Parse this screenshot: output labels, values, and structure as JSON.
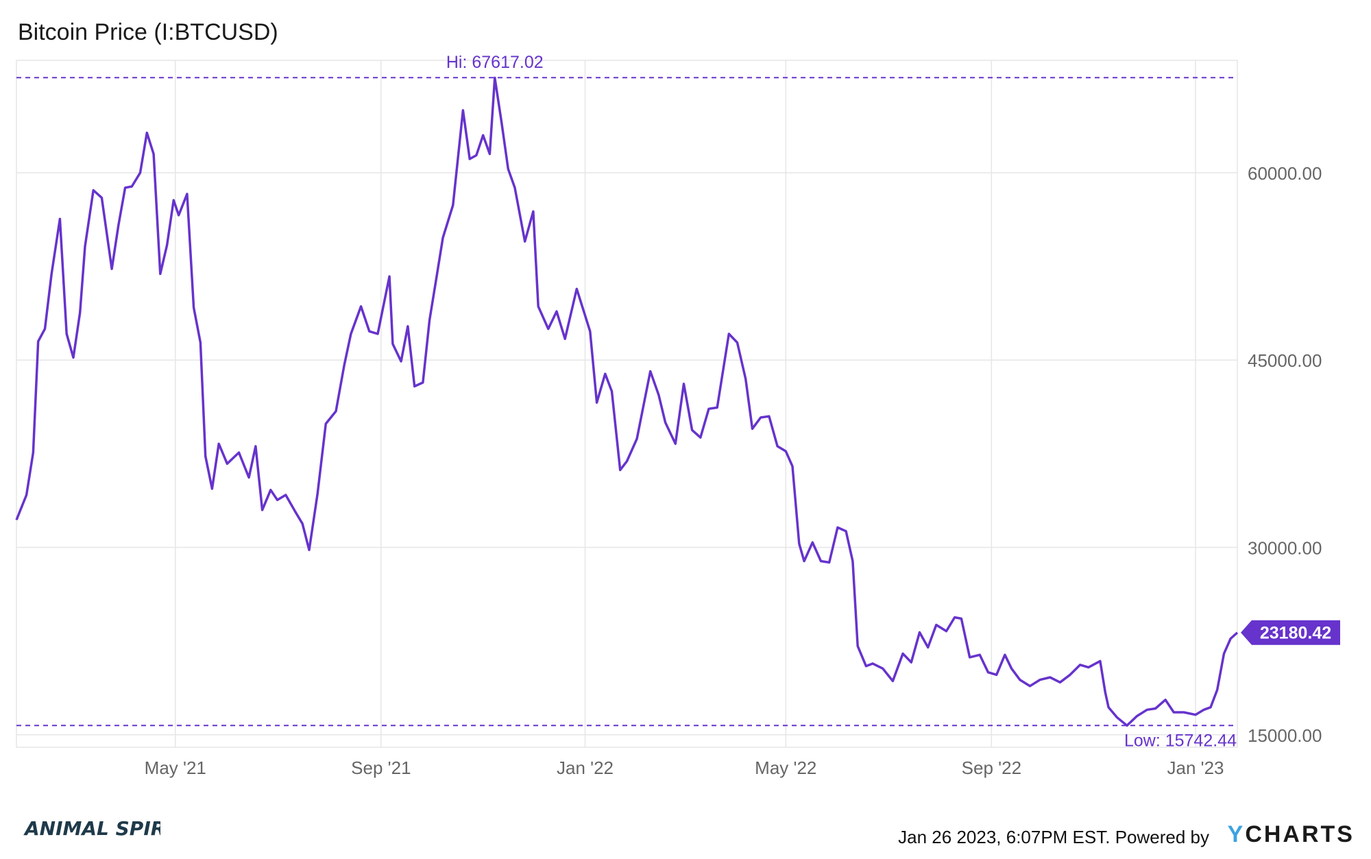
{
  "title": "Bitcoin Price (I:BTCUSD)",
  "footer": {
    "timestamp": "Jan 26 2023, 6:07PM EST. Powered by",
    "brand_y": "Y",
    "brand_rest": "CHARTS",
    "logo_text": "ANIMAL SPIRITS"
  },
  "colors": {
    "line": "#6633cc",
    "grid": "#e6e6e6",
    "axis_text": "#666666",
    "label_bg": "#6633cc"
  },
  "chart_data": {
    "type": "line",
    "title": "Bitcoin Price (I:BTCUSD)",
    "ylim": [
      14000,
      69000
    ],
    "y_ticks": [
      15000,
      30000,
      45000,
      60000
    ],
    "y_tick_labels": [
      "15000.00",
      "30000.00",
      "45000.00",
      "60000.00"
    ],
    "x_tick_labels": [
      "May '21",
      "Sep '21",
      "Jan '22",
      "May '22",
      "Sep '22",
      "Jan '23"
    ],
    "x_tick_dates": [
      "2021-05-01",
      "2021-09-01",
      "2022-01-01",
      "2022-05-01",
      "2022-09-01",
      "2023-01-01"
    ],
    "x_range": [
      "2021-01-26",
      "2023-01-26"
    ],
    "grid": true,
    "hi": {
      "value": 67617.02,
      "label": "Hi: 67617.02",
      "date": "2021-11-08"
    },
    "low": {
      "value": 15742.44,
      "label": "Low: 15742.44",
      "date": "2022-11-21"
    },
    "last": {
      "value": 23180.42,
      "label": "23180.42"
    },
    "series": [
      {
        "dates": [
          "2021-01-26",
          "2021-02-01",
          "2021-02-05",
          "2021-02-08",
          "2021-02-12",
          "2021-02-16",
          "2021-02-21",
          "2021-02-25",
          "2021-03-01",
          "2021-03-05",
          "2021-03-08",
          "2021-03-13",
          "2021-03-18",
          "2021-03-24",
          "2021-03-28",
          "2021-04-01",
          "2021-04-05",
          "2021-04-10",
          "2021-04-14",
          "2021-04-18",
          "2021-04-22",
          "2021-04-26",
          "2021-04-30",
          "2021-05-03",
          "2021-05-08",
          "2021-05-12",
          "2021-05-16",
          "2021-05-19",
          "2021-05-23",
          "2021-05-27",
          "2021-06-01",
          "2021-06-08",
          "2021-06-14",
          "2021-06-18",
          "2021-06-22",
          "2021-06-27",
          "2021-07-01",
          "2021-07-06",
          "2021-07-12",
          "2021-07-16",
          "2021-07-20",
          "2021-07-25",
          "2021-07-30",
          "2021-08-05",
          "2021-08-10",
          "2021-08-14",
          "2021-08-20",
          "2021-08-25",
          "2021-08-30",
          "2021-09-06",
          "2021-09-08",
          "2021-09-13",
          "2021-09-17",
          "2021-09-21",
          "2021-09-26",
          "2021-09-30",
          "2021-10-04",
          "2021-10-08",
          "2021-10-14",
          "2021-10-20",
          "2021-10-24",
          "2021-10-28",
          "2021-11-01",
          "2021-11-05",
          "2021-11-08",
          "2021-11-12",
          "2021-11-16",
          "2021-11-20",
          "2021-11-26",
          "2021-12-01",
          "2021-12-04",
          "2021-12-10",
          "2021-12-15",
          "2021-12-20",
          "2021-12-27",
          "2022-01-04",
          "2022-01-08",
          "2022-01-13",
          "2022-01-17",
          "2022-01-22",
          "2022-01-26",
          "2022-02-01",
          "2022-02-05",
          "2022-02-09",
          "2022-02-14",
          "2022-02-18",
          "2022-02-24",
          "2022-03-01",
          "2022-03-06",
          "2022-03-11",
          "2022-03-16",
          "2022-03-21",
          "2022-03-28",
          "2022-04-02",
          "2022-04-07",
          "2022-04-11",
          "2022-04-16",
          "2022-04-21",
          "2022-04-26",
          "2022-05-01",
          "2022-05-05",
          "2022-05-09",
          "2022-05-12",
          "2022-05-17",
          "2022-05-22",
          "2022-05-27",
          "2022-06-01",
          "2022-06-06",
          "2022-06-10",
          "2022-06-13",
          "2022-06-18",
          "2022-06-22",
          "2022-06-28",
          "2022-07-04",
          "2022-07-10",
          "2022-07-15",
          "2022-07-20",
          "2022-07-25",
          "2022-07-30",
          "2022-08-05",
          "2022-08-10",
          "2022-08-14",
          "2022-08-19",
          "2022-08-25",
          "2022-08-30",
          "2022-09-04",
          "2022-09-09",
          "2022-09-13",
          "2022-09-18",
          "2022-09-24",
          "2022-09-30",
          "2022-10-06",
          "2022-10-12",
          "2022-10-18",
          "2022-10-24",
          "2022-10-29",
          "2022-11-05",
          "2022-11-08",
          "2022-11-10",
          "2022-11-15",
          "2022-11-21",
          "2022-11-27",
          "2022-12-03",
          "2022-12-08",
          "2022-12-14",
          "2022-12-19",
          "2022-12-25",
          "2023-01-01",
          "2023-01-06",
          "2023-01-10",
          "2023-01-14",
          "2023-01-18",
          "2023-01-22",
          "2023-01-26"
        ],
        "values": [
          32200,
          34200,
          37600,
          46500,
          47500,
          51900,
          56300,
          47100,
          45200,
          48800,
          54100,
          58600,
          58000,
          52300,
          55800,
          58800,
          58900,
          60000,
          63200,
          61500,
          51900,
          54200,
          57800,
          56600,
          58300,
          49200,
          46400,
          37300,
          34700,
          38300,
          36700,
          37600,
          35600,
          38100,
          33000,
          34600,
          33800,
          34200,
          32800,
          31900,
          29800,
          34300,
          39900,
          40900,
          44600,
          47100,
          49300,
          47300,
          47100,
          51700,
          46300,
          44900,
          47700,
          42900,
          43200,
          48200,
          51500,
          54800,
          57400,
          65000,
          61100,
          61400,
          63000,
          61500,
          67600,
          64100,
          60300,
          58800,
          54500,
          56900,
          49300,
          47500,
          48900,
          46700,
          50700,
          47300,
          41600,
          43900,
          42500,
          36200,
          36900,
          38700,
          41400,
          44100,
          42200,
          40000,
          38300,
          43100,
          39400,
          38800,
          41100,
          41200,
          47100,
          46400,
          43500,
          39500,
          40400,
          40500,
          38100,
          37700,
          36500,
          30300,
          28900,
          30400,
          28900,
          28800,
          31600,
          31300,
          28900,
          22100,
          20500,
          20700,
          20300,
          19300,
          21500,
          20800,
          23200,
          22000,
          23800,
          23300,
          24400,
          24300,
          21200,
          21400,
          20000,
          19800,
          21400,
          20300,
          19400,
          18900,
          19400,
          19600,
          19200,
          19800,
          20600,
          20400,
          20900,
          18400,
          17200,
          16400,
          15742,
          16500,
          17000,
          17100,
          17800,
          16800,
          16800,
          16600,
          17000,
          17200,
          18600,
          21500,
          22700,
          23180
        ]
      }
    ]
  }
}
